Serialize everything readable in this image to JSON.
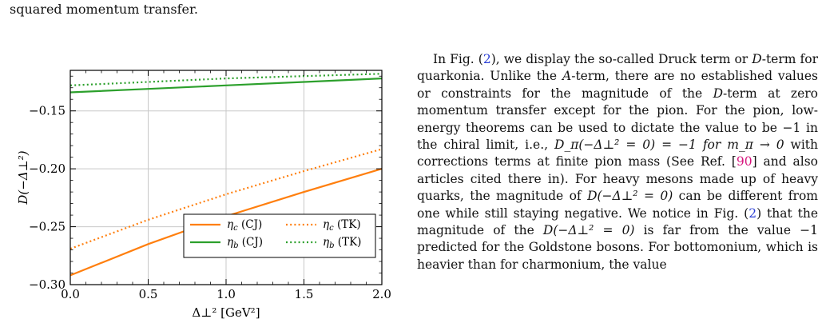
{
  "header": {
    "caption_tail": "squared momentum transfer."
  },
  "chart_data": {
    "type": "line",
    "title": "",
    "xlabel": "Δ⊥² [GeV²]",
    "ylabel": "D(−Δ⊥²)",
    "xlim": [
      0.0,
      2.0
    ],
    "ylim": [
      -0.3,
      -0.115
    ],
    "xticks": [
      "0.0",
      "0.5",
      "1.0",
      "1.5",
      "2.0"
    ],
    "yticks": [
      "−0.30",
      "−0.25",
      "−0.20",
      "−0.15"
    ],
    "xtick_values": [
      0.0,
      0.5,
      1.0,
      1.5,
      2.0
    ],
    "ytick_values": [
      -0.3,
      -0.25,
      -0.2,
      -0.15
    ],
    "grid": true,
    "legend_position": "bottom-right",
    "x": [
      0.0,
      0.5,
      1.0,
      1.5,
      2.0
    ],
    "series": [
      {
        "name": "ηc (CJ)",
        "label_main": "η",
        "label_sub": "c",
        "label_tag": "(CJ)",
        "color": "#ff7f0e",
        "dash": "solid",
        "values": [
          -0.292,
          -0.265,
          -0.241,
          -0.22,
          -0.2
        ]
      },
      {
        "name": "ηc (TK)",
        "label_main": "η",
        "label_sub": "c",
        "label_tag": "(TK)",
        "color": "#ff7f0e",
        "dash": "dotted",
        "values": [
          -0.269,
          -0.244,
          -0.222,
          -0.202,
          -0.183
        ]
      },
      {
        "name": "ηb (CJ)",
        "label_main": "η",
        "label_sub": "b",
        "label_tag": "(CJ)",
        "color": "#2ca02c",
        "dash": "solid",
        "values": [
          -0.134,
          -0.131,
          -0.128,
          -0.125,
          -0.122
        ]
      },
      {
        "name": "ηb (TK)",
        "label_main": "η",
        "label_sub": "b",
        "label_tag": "(TK)",
        "color": "#2ca02c",
        "dash": "dotted",
        "values": [
          -0.128,
          -0.125,
          -0.122,
          -0.12,
          -0.118
        ]
      }
    ]
  },
  "paragraph": {
    "s1": "In Fig. (",
    "fig_ref_1": "2",
    "s2": "), we display the so-called Druck term or ",
    "d1": "D",
    "s3": "-term for quarkonia. Unlike the ",
    "a1": "A",
    "s4": "-term, there are no established values or constraints for the magnitude of the ",
    "d2": "D",
    "s5": "-term at zero momentum transfer except for the pion. For the pion, low-energy theorems can be used to dictate the value to be −1 in the chiral limit, i.e., ",
    "eq1": "D_π(−Δ⊥² = 0) = −1 for m_π → 0",
    "s6": " with corrections terms at finite pion mass (See Ref. [",
    "cite_ref": "90",
    "s7": "] and also articles cited there in). For heavy mesons made up of heavy quarks, the magnitude of ",
    "eq2": "D(−Δ⊥² = 0)",
    "s8": " can be different from one while still staying negative. We notice in Fig. (",
    "fig_ref_2": "2",
    "s9": ") that the magnitude of the ",
    "eq3": "D(−Δ⊥² = 0)",
    "s10": " is far from the value −1 predicted for the Goldstone bosons. For bottomonium, which is heavier than for charmonium, the value"
  }
}
